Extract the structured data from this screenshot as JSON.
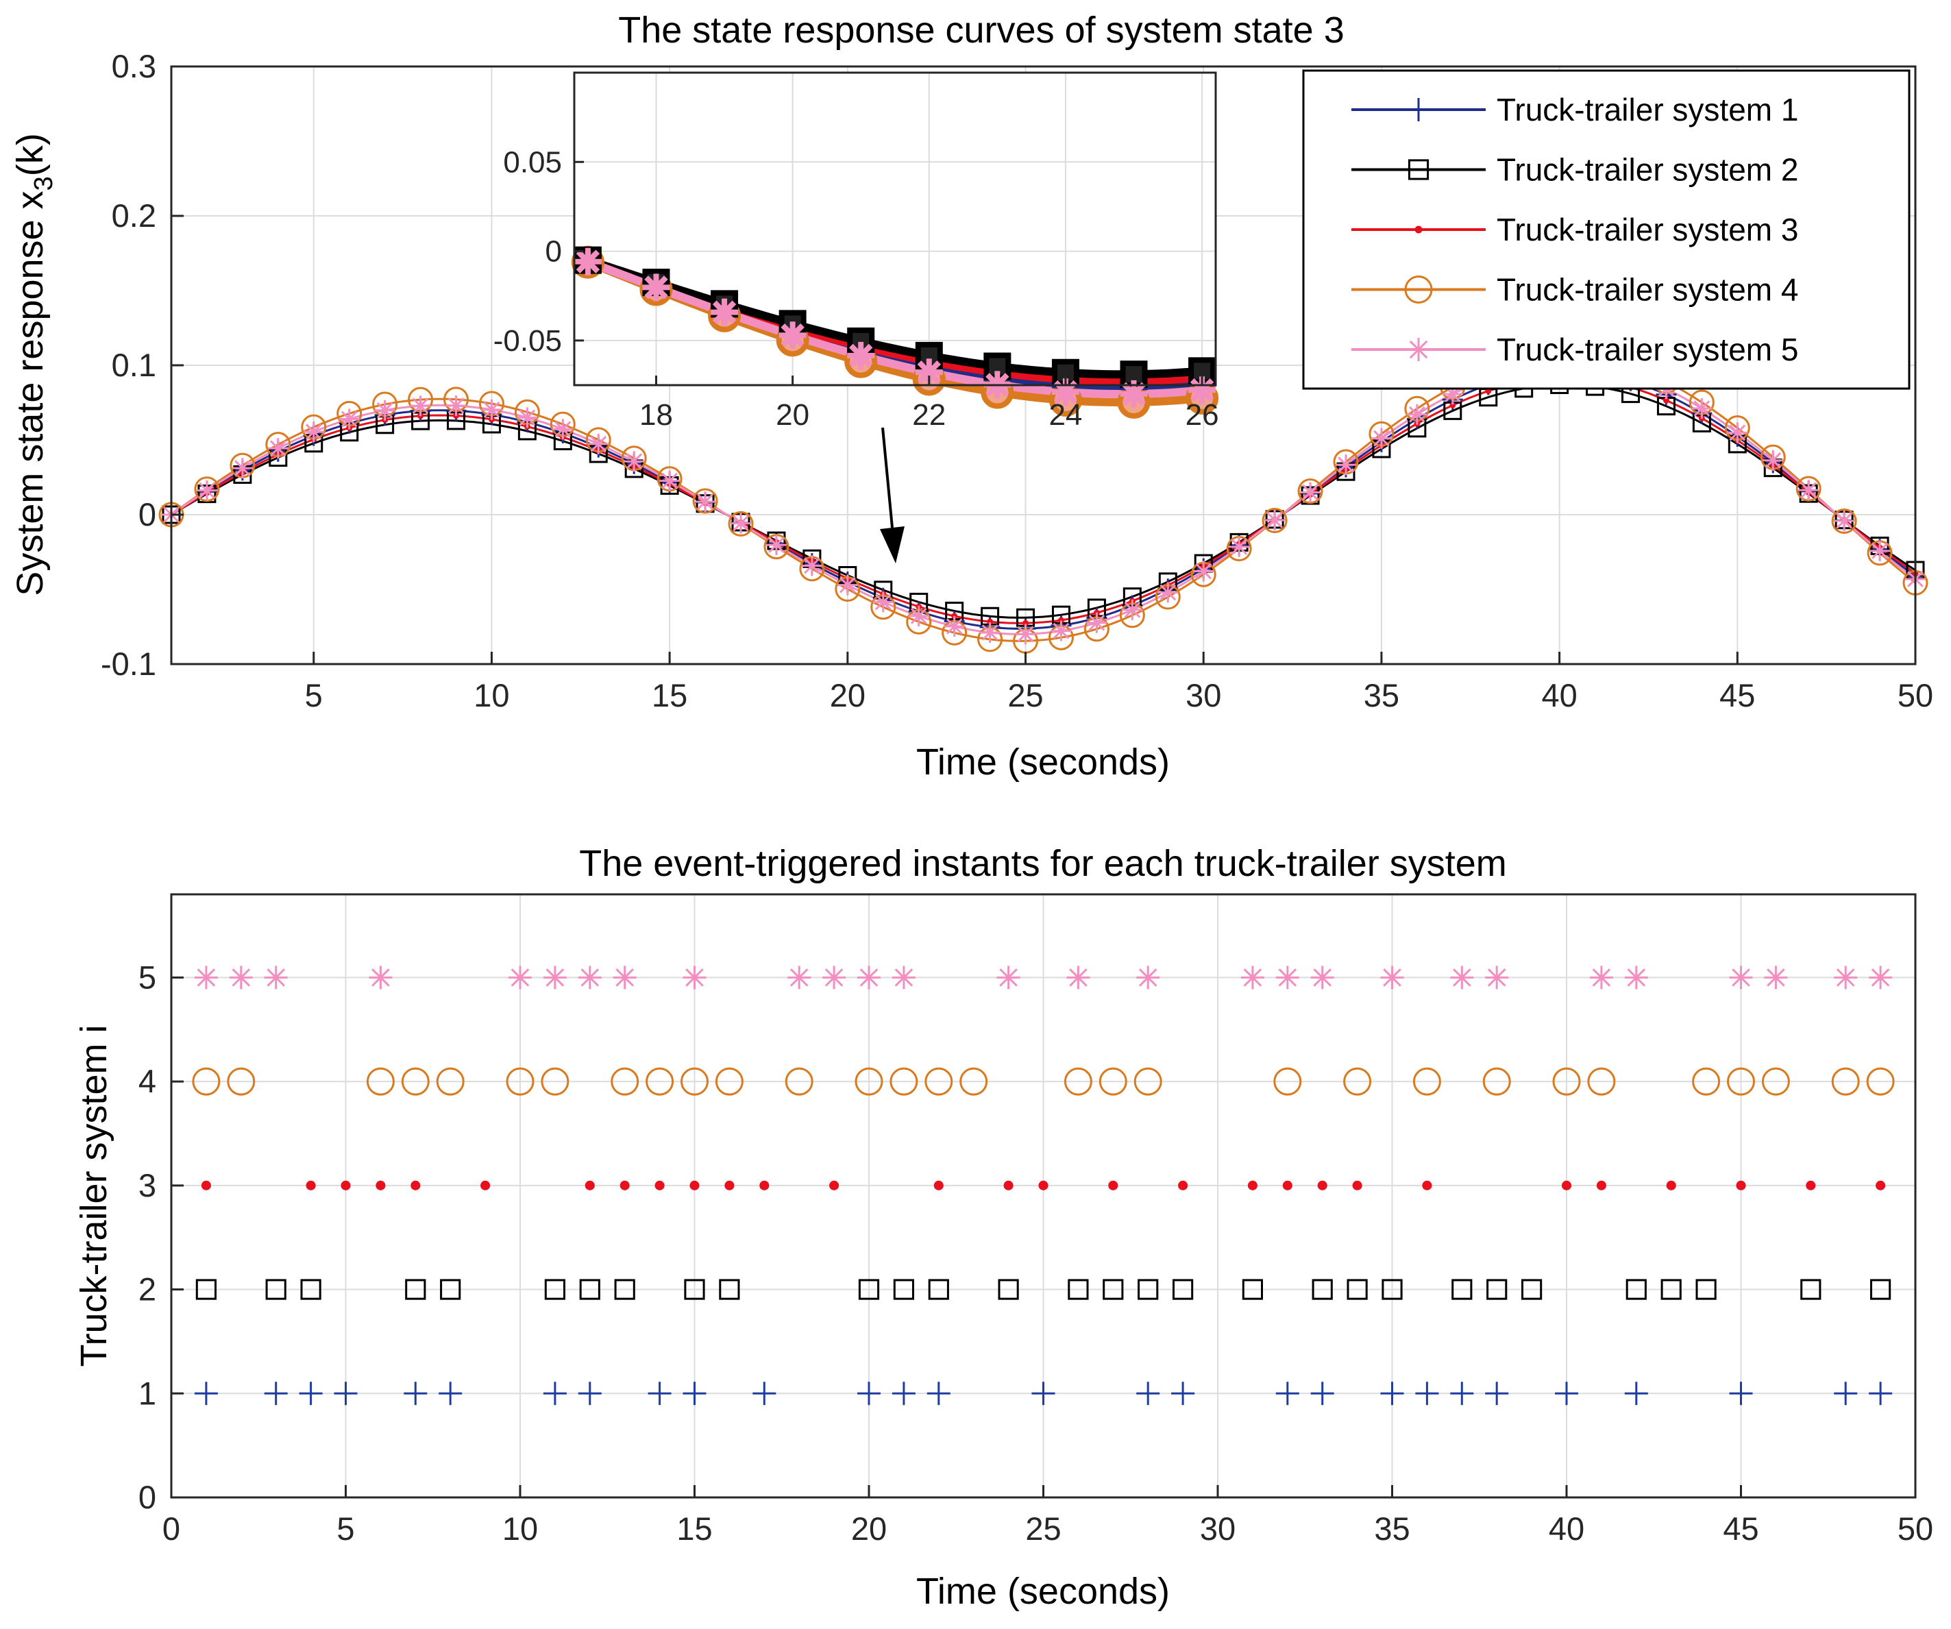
{
  "chart_data": [
    {
      "type": "line",
      "title": "The state response curves of system state 3",
      "xlabel": "Time (seconds)",
      "ylabel_main": "System state response x",
      "ylabel_sub": "3",
      "ylabel_tail": "(k)",
      "xlim": [
        1,
        50
      ],
      "ylim": [
        -0.1,
        0.3
      ],
      "xticks": [
        5,
        10,
        15,
        20,
        25,
        30,
        35,
        40,
        45,
        50
      ],
      "xtick_labels": [
        "5",
        "10",
        "15",
        "20",
        "25",
        "30",
        "35",
        "40",
        "45",
        "50"
      ],
      "yticks": [
        -0.1,
        0,
        0.1,
        0.2,
        0.3
      ],
      "ytick_labels": [
        "-0.1",
        "0",
        "0.1",
        "0.2",
        "0.3"
      ],
      "grid": true,
      "legend_position": "top-right",
      "series": [
        {
          "name": "Truck-trailer system 1",
          "color": "#1f2d8a",
          "marker": "plus",
          "amplitude": 0.083
        },
        {
          "name": "Truck-trailer system 2",
          "color": "#000000",
          "marker": "square",
          "amplitude": 0.075
        },
        {
          "name": "Truck-trailer system 3",
          "color": "#e8101c",
          "marker": "dot",
          "amplitude": 0.079
        },
        {
          "name": "Truck-trailer system 4",
          "color": "#d97a1e",
          "marker": "circle",
          "amplitude": 0.092
        },
        {
          "name": "Truck-trailer system 5",
          "color": "#f28ec0",
          "marker": "asterisk",
          "amplitude": 0.087
        }
      ],
      "inset": {
        "xlim": [
          16.8,
          26.2
        ],
        "ylim": [
          -0.075,
          0.1
        ],
        "xticks": [
          18,
          20,
          22,
          24,
          26
        ],
        "xtick_labels": [
          "18",
          "20",
          "22",
          "24",
          "26"
        ],
        "yticks": [
          -0.05,
          0,
          0.05
        ],
        "ytick_labels": [
          "-0.05",
          "0",
          "0.05"
        ],
        "annotation": "arrow pointing to t = 21.3"
      }
    },
    {
      "type": "scatter",
      "title": "The event-triggered instants for each truck-trailer system",
      "xlabel": "Time (seconds)",
      "ylabel": "Truck-trailer system i",
      "xlim": [
        0,
        50
      ],
      "ylim": [
        0,
        5.8
      ],
      "xticks": [
        0,
        5,
        10,
        15,
        20,
        25,
        30,
        35,
        40,
        45,
        50
      ],
      "xtick_labels": [
        "0",
        "5",
        "10",
        "15",
        "20",
        "25",
        "30",
        "35",
        "40",
        "45",
        "50"
      ],
      "yticks": [
        0,
        1,
        2,
        3,
        4,
        5
      ],
      "ytick_labels": [
        "0",
        "1",
        "2",
        "3",
        "4",
        "5"
      ],
      "grid": true,
      "events": [
        {
          "system": 1,
          "marker": "plus",
          "color": "#1f3da0",
          "times": [
            1,
            3,
            4,
            5,
            7,
            8,
            11,
            12,
            14,
            15,
            17,
            20,
            21,
            22,
            25,
            28,
            29,
            32,
            33,
            35,
            36,
            37,
            38,
            40,
            42,
            45,
            48,
            49
          ]
        },
        {
          "system": 2,
          "marker": "square",
          "color": "#000000",
          "times": [
            1,
            3,
            4,
            7,
            8,
            11,
            12,
            13,
            15,
            16,
            20,
            21,
            22,
            24,
            26,
            27,
            28,
            29,
            31,
            33,
            34,
            35,
            37,
            38,
            39,
            42,
            43,
            44,
            47,
            49
          ]
        },
        {
          "system": 3,
          "marker": "dot",
          "color": "#e8101c",
          "times": [
            1,
            4,
            5,
            6,
            7,
            9,
            12,
            13,
            14,
            15,
            16,
            17,
            19,
            22,
            24,
            25,
            27,
            29,
            31,
            32,
            33,
            34,
            36,
            40,
            41,
            43,
            45,
            47,
            49
          ]
        },
        {
          "system": 4,
          "marker": "circle",
          "color": "#d97a1e",
          "times": [
            1,
            2,
            6,
            7,
            8,
            10,
            11,
            13,
            14,
            15,
            16,
            18,
            20,
            21,
            22,
            23,
            26,
            27,
            28,
            32,
            34,
            36,
            38,
            40,
            41,
            44,
            45,
            46,
            48,
            49
          ]
        },
        {
          "system": 5,
          "marker": "asterisk",
          "color": "#f28ec0",
          "times": [
            1,
            2,
            3,
            6,
            10,
            11,
            12,
            13,
            15,
            18,
            19,
            20,
            21,
            24,
            26,
            28,
            31,
            32,
            33,
            35,
            37,
            38,
            41,
            42,
            45,
            46,
            48,
            49
          ]
        }
      ]
    }
  ]
}
